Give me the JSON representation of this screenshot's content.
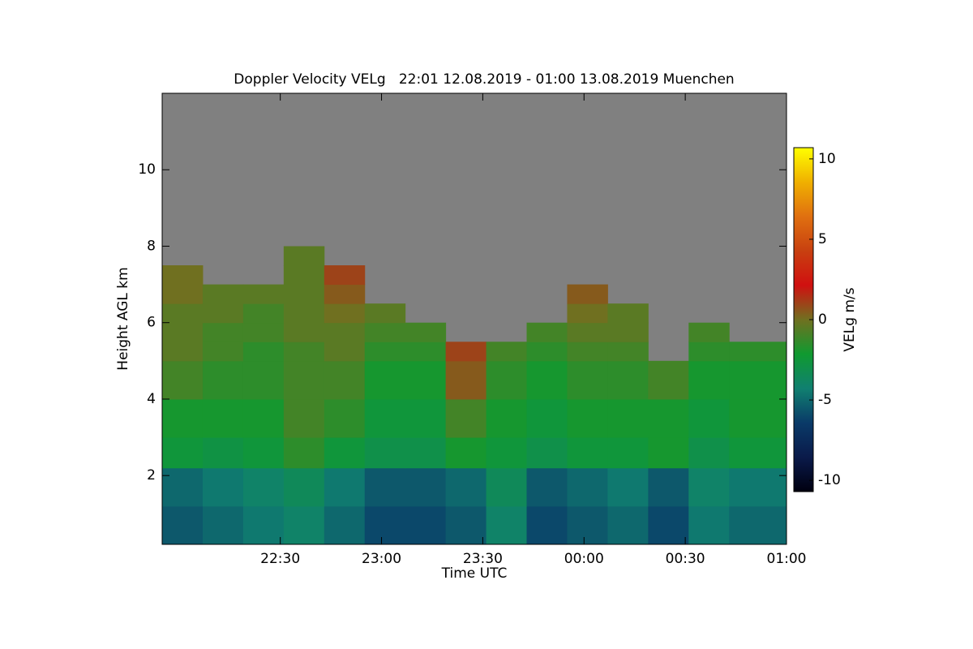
{
  "chart_data": {
    "type": "heatmap",
    "title": "Doppler Velocity VELg   22:01 12.08.2019 - 01:00 13.08.2019 Muenchen",
    "x_label": "Time UTC",
    "y_label": "Height AGL km",
    "colorbar_label": "VELg m/s",
    "xlim": [
      -5,
      180
    ],
    "xticks": [
      {
        "value": 30,
        "label": "22:30"
      },
      {
        "value": 60,
        "label": "23:00"
      },
      {
        "value": 90,
        "label": "23:30"
      },
      {
        "value": 120,
        "label": "00:00"
      },
      {
        "value": 150,
        "label": "00:30"
      },
      {
        "value": 180,
        "label": "01:00"
      }
    ],
    "ylim": [
      0.2,
      12
    ],
    "yticks": [
      2,
      4,
      6,
      8,
      10
    ],
    "zlim": [
      -10.7,
      10.7
    ],
    "zticks": [
      10,
      5,
      0,
      -5,
      -10
    ],
    "colorscale": [
      "#000010",
      "#0a1a4a",
      "#0a3a68",
      "#108070",
      "#109a30",
      "#707020",
      "#d01010",
      "#c84010",
      "#e07010",
      "#f0b000",
      "#ffff00"
    ],
    "background_color": "#808080",
    "xbins": [
      -5,
      7,
      19,
      31,
      43,
      55,
      67,
      79,
      91,
      103,
      115,
      127,
      139,
      151,
      163,
      180
    ],
    "ybins": [
      0.2,
      1.2,
      2.2,
      3,
      4,
      5,
      5.5,
      6,
      6.5,
      7,
      7.5,
      8
    ],
    "z": [
      [
        -5.5,
        -5,
        -4.5,
        -4,
        -5,
        -6,
        -6,
        -5.5,
        -4,
        -6,
        -5.5,
        -5,
        -6,
        -4.5,
        -5
      ],
      [
        -5,
        -4.5,
        -4,
        -3.5,
        -4.5,
        -5.5,
        -5.5,
        -5,
        -3.5,
        -5.5,
        -5,
        -4.5,
        -5.5,
        -4,
        -4.5
      ],
      [
        -2.5,
        -2.8,
        -2.5,
        -1.5,
        -2.5,
        -3,
        -3,
        -2,
        -2.5,
        -3,
        -2.5,
        -2.5,
        -2,
        -3,
        -2.5
      ],
      [
        -2,
        -2,
        -2,
        -1,
        -1.5,
        -2.5,
        -2.5,
        -1,
        -2,
        -2.5,
        -2,
        -2,
        -2,
        -2.5,
        -2
      ],
      [
        -1,
        -1.5,
        -1.5,
        -1,
        -1,
        -2,
        -2,
        0.5,
        -1.5,
        -2,
        -1.5,
        -1.5,
        -1,
        -2,
        -2
      ],
      [
        -0.5,
        -1,
        -1.5,
        -1,
        -0.5,
        -1.5,
        -1.5,
        1,
        -1,
        -1.5,
        -1,
        -1,
        null,
        -1.5,
        -1.5
      ],
      [
        -0.5,
        -1,
        -1,
        -0.5,
        -0.5,
        -1,
        -1,
        null,
        null,
        -1,
        -0.5,
        -0.5,
        null,
        -1,
        null
      ],
      [
        -0.5,
        -0.5,
        -1,
        -0.5,
        0,
        -0.5,
        null,
        null,
        null,
        null,
        0,
        -0.5,
        null,
        null,
        null
      ],
      [
        0,
        -0.5,
        -0.5,
        -0.5,
        0.5,
        null,
        null,
        null,
        null,
        null,
        0.5,
        null,
        null,
        null,
        null
      ],
      [
        0,
        null,
        null,
        -0.5,
        1,
        null,
        null,
        null,
        null,
        null,
        null,
        null,
        null,
        null,
        null
      ],
      [
        null,
        null,
        null,
        -0.5,
        null,
        null,
        null,
        null,
        null,
        null,
        null,
        null,
        null,
        null,
        null
      ]
    ]
  }
}
